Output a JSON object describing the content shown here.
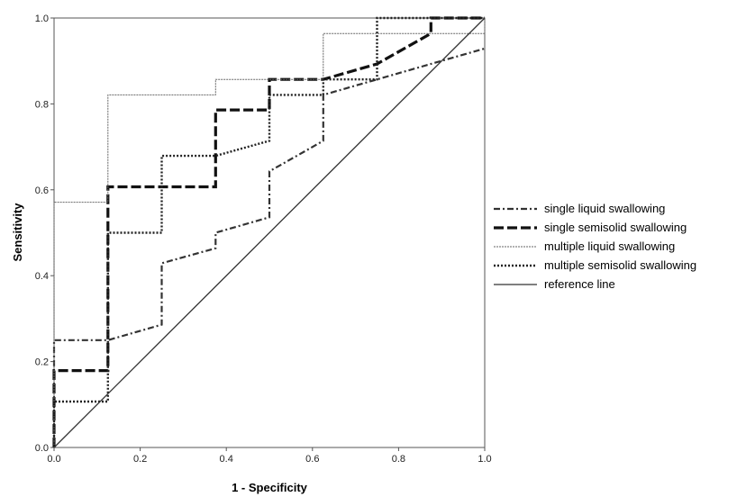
{
  "chart_data": {
    "type": "line",
    "xlabel": "1 - Specificity",
    "ylabel": "Sensitivity",
    "xlim": [
      0,
      1
    ],
    "ylim": [
      0,
      1
    ],
    "xticks": [
      "0.0",
      "0.2",
      "0.4",
      "0.6",
      "0.8",
      "1.0"
    ],
    "yticks": [
      "0.0",
      "0.2",
      "0.4",
      "0.6",
      "0.8",
      "1.0"
    ],
    "grid": false,
    "legend_position": "right",
    "series": [
      {
        "name": "single liquid swallowing",
        "style": "dashdot",
        "color": "#333333",
        "points": [
          [
            0,
            0
          ],
          [
            0,
            0.25
          ],
          [
            0.125,
            0.25
          ],
          [
            0.125,
            0.25
          ],
          [
            0.25,
            0.286
          ],
          [
            0.25,
            0.429
          ],
          [
            0.375,
            0.464
          ],
          [
            0.375,
            0.5
          ],
          [
            0.5,
            0.536
          ],
          [
            0.5,
            0.643
          ],
          [
            0.625,
            0.714
          ],
          [
            0.625,
            0.821
          ],
          [
            0.75,
            0.857
          ],
          [
            0.875,
            0.893
          ],
          [
            1.0,
            0.929
          ]
        ]
      },
      {
        "name": "single semisolid swallowing",
        "style": "longdash",
        "color": "#111111",
        "points": [
          [
            0,
            0
          ],
          [
            0,
            0.179
          ],
          [
            0.125,
            0.179
          ],
          [
            0.125,
            0.607
          ],
          [
            0.375,
            0.607
          ],
          [
            0.375,
            0.786
          ],
          [
            0.5,
            0.786
          ],
          [
            0.5,
            0.857
          ],
          [
            0.625,
            0.857
          ],
          [
            0.75,
            0.893
          ],
          [
            0.875,
            0.964
          ],
          [
            0.875,
            1.0
          ],
          [
            1.0,
            1.0
          ]
        ]
      },
      {
        "name": "multiple liquid swallowing",
        "style": "thin",
        "color": "#666666",
        "points": [
          [
            0,
            0
          ],
          [
            0,
            0.571
          ],
          [
            0.125,
            0.571
          ],
          [
            0.125,
            0.821
          ],
          [
            0.375,
            0.821
          ],
          [
            0.375,
            0.857
          ],
          [
            0.625,
            0.857
          ],
          [
            0.625,
            0.964
          ],
          [
            1.0,
            0.964
          ],
          [
            1.0,
            1.0
          ]
        ]
      },
      {
        "name": "multiple semisolid swallowing",
        "style": "dotted",
        "color": "#222222",
        "points": [
          [
            0,
            0
          ],
          [
            0,
            0.107
          ],
          [
            0.125,
            0.107
          ],
          [
            0.125,
            0.5
          ],
          [
            0.25,
            0.5
          ],
          [
            0.25,
            0.679
          ],
          [
            0.375,
            0.679
          ],
          [
            0.5,
            0.714
          ],
          [
            0.5,
            0.821
          ],
          [
            0.625,
            0.821
          ],
          [
            0.625,
            0.857
          ],
          [
            0.75,
            0.857
          ],
          [
            0.75,
            1.0
          ],
          [
            1.0,
            1.0
          ]
        ]
      },
      {
        "name": "reference line",
        "style": "solid",
        "color": "#333333",
        "points": [
          [
            0,
            0
          ],
          [
            1,
            1
          ]
        ]
      }
    ]
  }
}
